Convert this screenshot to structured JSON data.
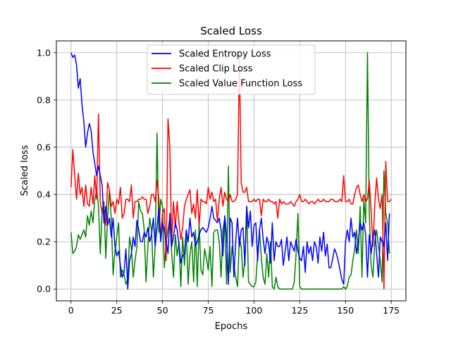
{
  "chart_data": {
    "type": "line",
    "title": "Scaled Loss",
    "xlabel": "Epochs",
    "ylabel": "Scaled loss",
    "xlim": [
      -8,
      183
    ],
    "ylim": [
      -0.05,
      1.05
    ],
    "xticks": [
      0,
      25,
      50,
      75,
      100,
      125,
      150,
      175
    ],
    "yticks": [
      0.0,
      0.2,
      0.4,
      0.6,
      0.8,
      1.0
    ],
    "xtick_labels": [
      "0",
      "25",
      "50",
      "75",
      "100",
      "125",
      "150",
      "175"
    ],
    "ytick_labels": [
      "0.0",
      "0.2",
      "0.4",
      "0.6",
      "0.8",
      "1.0"
    ],
    "grid": true,
    "legend_position": "top-center",
    "series": [
      {
        "name": "Scaled Entropy Loss",
        "color": "#0000ff",
        "y": [
          1.0,
          0.98,
          0.99,
          0.95,
          0.85,
          0.89,
          0.78,
          0.71,
          0.6,
          0.66,
          0.7,
          0.67,
          0.58,
          0.53,
          0.48,
          0.52,
          0.48,
          0.44,
          0.28,
          0.35,
          0.27,
          0.3,
          0.22,
          0.3,
          0.18,
          0.14,
          0.16,
          0.1,
          0.05,
          0.07,
          0.17,
          0.0,
          0.12,
          0.15,
          0.22,
          0.18,
          0.29,
          0.25,
          0.2,
          0.2,
          0.24,
          0.22,
          0.26,
          0.2,
          0.23,
          0.3,
          0.18,
          0.26,
          0.34,
          0.2,
          0.28,
          0.25,
          0.2,
          0.15,
          0.32,
          0.18,
          0.22,
          0.28,
          0.25,
          0.19,
          0.11,
          0.14,
          0.15,
          0.25,
          0.2,
          0.3,
          0.22,
          0.24,
          0.18,
          0.2,
          0.23,
          0.25,
          0.26,
          0.25,
          0.24,
          0.26,
          0.3,
          0.35,
          0.3,
          0.29,
          0.28,
          0.3,
          0.25,
          0.14,
          0.31,
          0.23,
          0.02,
          0.3,
          0.28,
          0.05,
          0.2,
          0.3,
          0.18,
          0.25,
          0.26,
          0.1,
          0.35,
          0.26,
          0.33,
          0.18,
          0.27,
          0.28,
          0.12,
          0.25,
          0.3,
          0.21,
          0.15,
          0.22,
          0.19,
          0.11,
          0.28,
          0.12,
          0.2,
          0.18,
          0.18,
          0.21,
          0.1,
          0.16,
          0.22,
          0.12,
          0.2,
          0.18,
          0.16,
          0.21,
          0.16,
          0.13,
          0.12,
          0.18,
          0.07,
          0.2,
          0.15,
          0.18,
          0.12,
          0.2,
          0.18,
          0.11,
          0.22,
          0.16,
          0.24,
          0.14,
          0.19,
          0.09,
          0.09,
          0.13,
          0.17,
          0.15,
          0.12,
          0.08,
          0.04,
          0.02,
          0.2,
          0.25,
          0.2,
          0.3,
          0.22,
          0.24,
          0.15,
          0.2,
          0.28,
          0.25,
          0.28,
          0.23,
          0.05,
          0.23,
          0.15,
          0.22,
          0.25,
          0.15,
          0.05,
          0.22,
          0.2,
          0.18,
          0.28,
          0.12,
          0.32
        ]
      },
      {
        "name": "Scaled Clip Loss",
        "color": "#ff0000",
        "y": [
          0.43,
          0.59,
          0.48,
          0.38,
          0.49,
          0.4,
          0.43,
          0.35,
          0.44,
          0.36,
          0.35,
          0.43,
          0.36,
          0.48,
          0.38,
          0.74,
          0.37,
          0.32,
          0.33,
          0.27,
          0.45,
          0.42,
          0.35,
          0.37,
          0.32,
          0.38,
          0.36,
          0.43,
          0.3,
          0.32,
          0.38,
          0.38,
          0.37,
          0.44,
          0.3,
          0.37,
          0.37,
          0.38,
          0.38,
          0.39,
          0.38,
          0.38,
          0.32,
          0.35,
          0.4,
          0.4,
          0.37,
          0.46,
          0.38,
          0.21,
          0.32,
          0.34,
          0.12,
          0.72,
          0.6,
          0.19,
          0.37,
          0.26,
          0.37,
          0.28,
          0.21,
          0.26,
          0.35,
          0.38,
          0.4,
          0.42,
          0.32,
          0.36,
          0.3,
          0.42,
          0.27,
          0.38,
          0.37,
          0.37,
          0.36,
          0.43,
          0.38,
          0.41,
          0.37,
          0.38,
          0.29,
          0.38,
          0.43,
          0.35,
          0.41,
          0.38,
          0.37,
          0.4,
          0.37,
          0.37,
          0.38,
          0.4,
          0.99,
          0.45,
          0.41,
          0.41,
          0.43,
          0.37,
          0.37,
          0.37,
          0.38,
          0.37,
          0.38,
          0.38,
          0.31,
          0.38,
          0.37,
          0.37,
          0.38,
          0.37,
          0.37,
          0.36,
          0.37,
          0.3,
          0.38,
          0.36,
          0.37,
          0.36,
          0.36,
          0.36,
          0.37,
          0.36,
          0.35,
          0.37,
          0.38,
          0.4,
          0.37,
          0.37,
          0.38,
          0.37,
          0.36,
          0.37,
          0.37,
          0.36,
          0.37,
          0.38,
          0.37,
          0.37,
          0.38,
          0.37,
          0.37,
          0.37,
          0.38,
          0.38,
          0.37,
          0.37,
          0.37,
          0.38,
          0.37,
          0.48,
          0.37,
          0.37,
          0.38,
          0.36,
          0.36,
          0.4,
          0.43,
          0.44,
          0.4,
          0.37,
          0.4,
          0.37,
          0.38,
          0.46,
          0.33,
          0.18,
          0.36,
          0.47,
          0.38,
          0.34,
          0.4,
          0.0,
          0.54,
          0.37,
          0.37,
          0.38
        ]
      },
      {
        "name": "Scaled Value Function Loss",
        "color": "#008000",
        "y": [
          0.24,
          0.15,
          0.16,
          0.18,
          0.23,
          0.21,
          0.23,
          0.25,
          0.22,
          0.31,
          0.27,
          0.33,
          0.28,
          0.38,
          0.42,
          0.35,
          0.15,
          0.33,
          0.37,
          0.13,
          0.3,
          0.42,
          0.3,
          0.06,
          0.16,
          0.22,
          0.28,
          0.05,
          0.08,
          0.06,
          0.02,
          0.04,
          0.22,
          0.17,
          0.05,
          0.12,
          0.18,
          0.37,
          0.33,
          0.32,
          0.25,
          0.03,
          0.18,
          0.3,
          0.25,
          0.05,
          0.18,
          0.66,
          0.24,
          0.38,
          0.35,
          0.09,
          0.2,
          0.25,
          0.3,
          0.15,
          0.05,
          0.23,
          0.14,
          0.2,
          0.01,
          0.22,
          0.1,
          0.25,
          0.02,
          0.15,
          0.2,
          0.03,
          0.25,
          0.01,
          0.28,
          0.08,
          0.06,
          0.17,
          0.13,
          0.08,
          0.18,
          0.01,
          0.24,
          0.25,
          0.25,
          0.2,
          0.05,
          0.25,
          0.3,
          0.02,
          0.52,
          0.07,
          0.18,
          0.1,
          0.05,
          0.01,
          0.22,
          0.18,
          0.05,
          0.12,
          0.35,
          0.03,
          0.02,
          0.01,
          0.01,
          0.03,
          0.15,
          0.25,
          0.13,
          0.05,
          0.02,
          0.15,
          0.05,
          0.2,
          0.01,
          0.0,
          0.05,
          0.01,
          0.0,
          0.0,
          0.0,
          0.0,
          0.0,
          0.0,
          0.0,
          0.0,
          0.03,
          0.15,
          0.32,
          0.01,
          0.0,
          0.0,
          0.0,
          0.0,
          0.0,
          0.0,
          0.0,
          0.0,
          0.0,
          0.0,
          0.0,
          0.0,
          0.0,
          0.0,
          0.0,
          0.0,
          0.0,
          0.0,
          0.0,
          0.0,
          0.0,
          0.0,
          0.0,
          0.01,
          0.0,
          0.01,
          0.05,
          0.06,
          0.12,
          0.17,
          0.25,
          0.15,
          0.35,
          0.05,
          0.38,
          0.28,
          1.0,
          0.32,
          0.1,
          0.05,
          0.2,
          0.25,
          0.18,
          0.12,
          0.03,
          0.5,
          0.32,
          0.28,
          0.15
        ]
      }
    ]
  }
}
